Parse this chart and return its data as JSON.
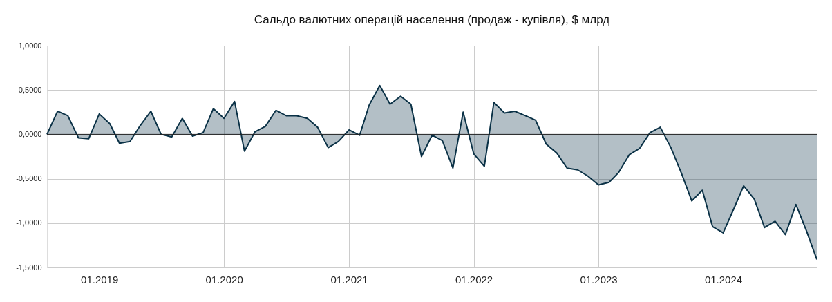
{
  "chart_data": {
    "type": "area",
    "title": "Сальдо валютних операцій населення (продаж - купівля), $ млрд",
    "x": [
      "2018-08",
      "2018-09",
      "2018-10",
      "2018-11",
      "2018-12",
      "2019-01",
      "2019-02",
      "2019-03",
      "2019-04",
      "2019-05",
      "2019-06",
      "2019-07",
      "2019-08",
      "2019-09",
      "2019-10",
      "2019-11",
      "2019-12",
      "2020-01",
      "2020-02",
      "2020-03",
      "2020-04",
      "2020-05",
      "2020-06",
      "2020-07",
      "2020-08",
      "2020-09",
      "2020-10",
      "2020-11",
      "2020-12",
      "2021-01",
      "2021-02",
      "2021-03",
      "2021-04",
      "2021-05",
      "2021-06",
      "2021-07",
      "2021-08",
      "2021-09",
      "2021-10",
      "2021-11",
      "2021-12",
      "2022-01",
      "2022-02",
      "2022-03",
      "2022-04",
      "2022-05",
      "2022-06",
      "2022-07",
      "2022-08",
      "2022-09",
      "2022-10",
      "2022-11",
      "2022-12",
      "2023-01",
      "2023-02",
      "2023-03",
      "2023-04",
      "2023-05",
      "2023-06",
      "2023-07",
      "2023-08",
      "2023-09",
      "2023-10",
      "2023-11",
      "2023-12",
      "2024-01",
      "2024-02",
      "2024-03",
      "2024-04",
      "2024-05",
      "2024-06",
      "2024-07",
      "2024-08",
      "2024-09",
      "2024-10"
    ],
    "series": [
      {
        "color": "#0a3146",
        "values": [
          0.0,
          0.26,
          0.21,
          -0.04,
          -0.05,
          0.23,
          0.12,
          -0.1,
          -0.08,
          0.1,
          0.26,
          0.0,
          -0.03,
          0.18,
          -0.02,
          0.02,
          0.29,
          0.18,
          0.37,
          -0.19,
          0.03,
          0.09,
          0.27,
          0.21,
          0.21,
          0.18,
          0.08,
          -0.15,
          -0.08,
          0.05,
          -0.01,
          0.33,
          0.55,
          0.34,
          0.43,
          0.34,
          -0.25,
          -0.01,
          -0.07,
          -0.38,
          0.25,
          -0.22,
          -0.36,
          0.36,
          0.24,
          0.26,
          0.21,
          0.16,
          -0.11,
          -0.21,
          -0.38,
          -0.4,
          -0.47,
          -0.57,
          -0.54,
          -0.43,
          -0.23,
          -0.16,
          0.02,
          0.08,
          -0.15,
          -0.44,
          -0.75,
          -0.63,
          -1.04,
          -1.11,
          -0.84,
          -0.58,
          -0.73,
          -1.05,
          -0.98,
          -1.13,
          -0.79,
          -1.09,
          -1.41
        ]
      }
    ],
    "xlim": [
      "2018-08",
      "2024-10"
    ],
    "xticks": [
      {
        "value": "2019-01",
        "label": "01.2019"
      },
      {
        "value": "2020-01",
        "label": "01.2020"
      },
      {
        "value": "2021-01",
        "label": "01.2021"
      },
      {
        "value": "2022-01",
        "label": "01.2022"
      },
      {
        "value": "2023-01",
        "label": "01.2023"
      },
      {
        "value": "2024-01",
        "label": "01.2024"
      }
    ],
    "ylim": [
      -1.5,
      1.0
    ],
    "yticks": [
      {
        "value": -1.5,
        "label": "-1,5000"
      },
      {
        "value": -1.0,
        "label": "-1,0000"
      },
      {
        "value": -0.5,
        "label": "-0,5000"
      },
      {
        "value": 0,
        "label": "0,0000"
      },
      {
        "value": 0.5,
        "label": "0,5000"
      },
      {
        "value": 1.0,
        "label": "1,0000"
      }
    ],
    "ref_lines": [
      {
        "axis": "y",
        "value": 0,
        "color": "#222222"
      }
    ],
    "grid": true,
    "marker": "none",
    "line_style": "solid"
  }
}
